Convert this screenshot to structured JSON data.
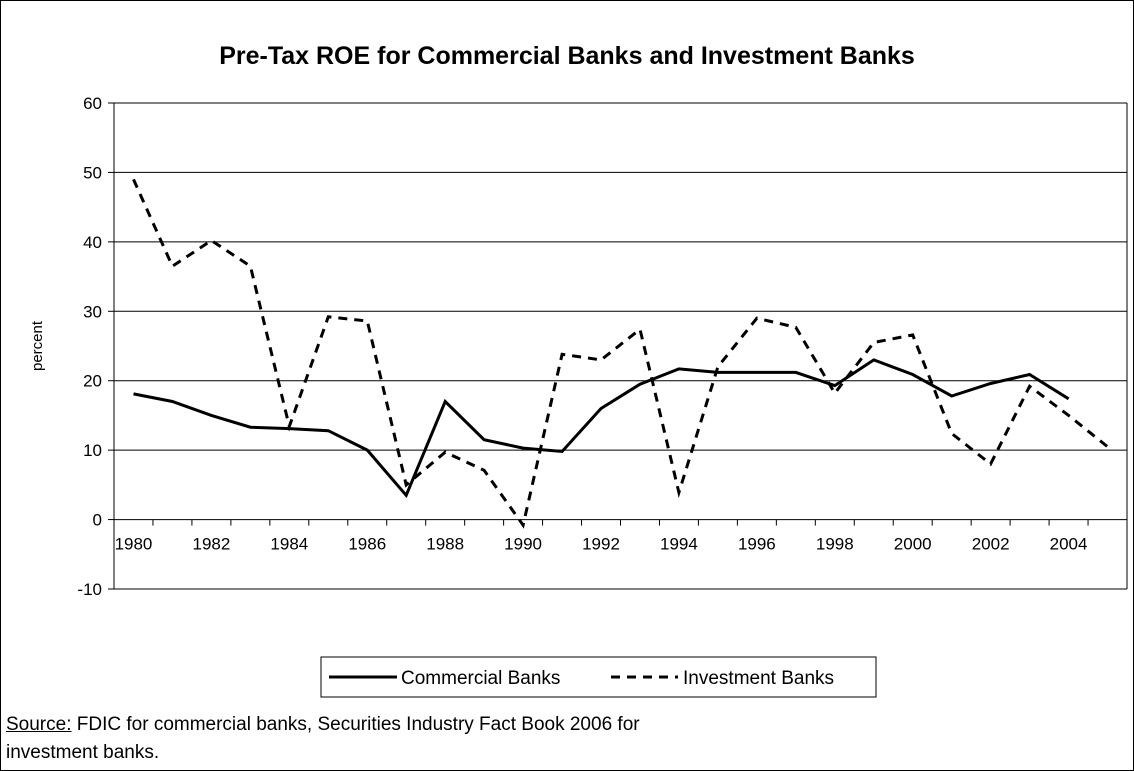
{
  "chart_data": {
    "type": "line",
    "title": "Pre-Tax ROE for Commercial Banks and Investment Banks",
    "xlabel": "",
    "ylabel": "percent",
    "x": [
      1980,
      1981,
      1982,
      1983,
      1984,
      1985,
      1986,
      1987,
      1988,
      1989,
      1990,
      1991,
      1992,
      1993,
      1994,
      1995,
      1996,
      1997,
      1998,
      1999,
      2000,
      2001,
      2002,
      2003,
      2004,
      2005
    ],
    "xticks": [
      "1980",
      "1982",
      "1984",
      "1986",
      "1988",
      "1990",
      "1992",
      "1994",
      "1996",
      "1998",
      "2000",
      "2002",
      "2004"
    ],
    "ylim": [
      -10,
      60
    ],
    "yticks": [
      "-10",
      "0",
      "10",
      "20",
      "30",
      "40",
      "50",
      "60"
    ],
    "grid": true,
    "legend_position": "bottom",
    "series": [
      {
        "name": "Commercial Banks",
        "style": "solid",
        "values": [
          18.1,
          17.0,
          15.0,
          13.3,
          13.1,
          12.8,
          10.0,
          3.5,
          17.0,
          11.5,
          10.3,
          9.8,
          16.0,
          19.5,
          21.7,
          21.2,
          21.2,
          21.2,
          19.3,
          23.0,
          20.9,
          17.8,
          19.6,
          20.9,
          17.4,
          null
        ]
      },
      {
        "name": "Investment Banks",
        "style": "dashed",
        "values": [
          49.0,
          36.5,
          40.2,
          36.5,
          13.4,
          29.2,
          28.6,
          5.0,
          9.7,
          7.1,
          -0.8,
          23.8,
          23.0,
          27.4,
          3.9,
          22.0,
          29.0,
          27.7,
          18.2,
          25.5,
          26.6,
          12.4,
          8.0,
          19.2,
          15.0,
          10.5
        ]
      }
    ],
    "colors": {
      "line": "#000000",
      "grid": "#000000",
      "background": "#ffffff"
    }
  },
  "footer": {
    "source_label": "Source:",
    "source_text": " FDIC for commercial banks, Securities Industry Fact Book 2006 for",
    "source_text_2": "investment banks."
  }
}
